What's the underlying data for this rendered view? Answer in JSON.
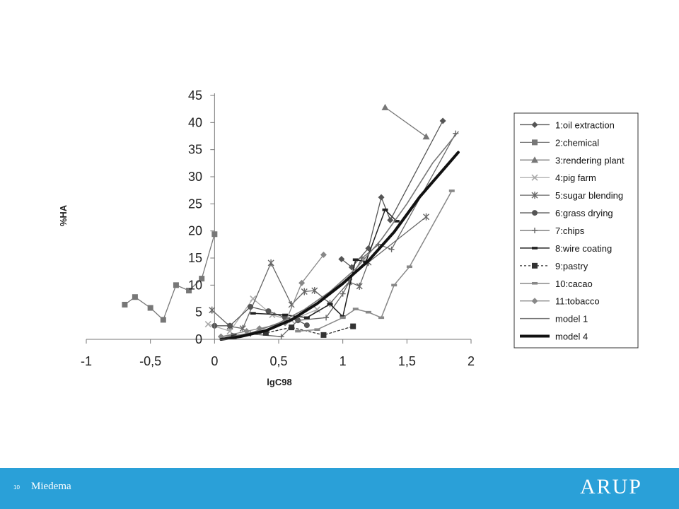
{
  "chart_data": {
    "type": "line",
    "title": "",
    "xlabel": "lgC98",
    "ylabel": "%HA",
    "xlim": [
      -1,
      2
    ],
    "ylim": [
      0,
      45
    ],
    "xticks": [
      {
        "v": -1,
        "label": "-1"
      },
      {
        "v": -0.5,
        "label": "-0,5"
      },
      {
        "v": 0,
        "label": "0"
      },
      {
        "v": 0.5,
        "label": "0,5"
      },
      {
        "v": 1,
        "label": "1"
      },
      {
        "v": 1.5,
        "label": "1,5"
      },
      {
        "v": 2,
        "label": "2"
      }
    ],
    "yticks": [
      {
        "v": 0,
        "label": "0"
      },
      {
        "v": 5,
        "label": "5"
      },
      {
        "v": 10,
        "label": "10"
      },
      {
        "v": 15,
        "label": "15"
      },
      {
        "v": 20,
        "label": "20"
      },
      {
        "v": 25,
        "label": "25"
      },
      {
        "v": 30,
        "label": "30"
      },
      {
        "v": 35,
        "label": "35"
      },
      {
        "v": 40,
        "label": "40"
      },
      {
        "v": 45,
        "label": "45"
      }
    ],
    "grid": false,
    "legend_position": "right",
    "series": [
      {
        "name": "1:oil extraction",
        "color": "#555555",
        "marker": "diamond",
        "dash": "",
        "width": 1.3,
        "points": [
          [
            0.99,
            14.8
          ],
          [
            1.07,
            13.3
          ],
          [
            1.2,
            16.8
          ],
          [
            1.3,
            26.2
          ],
          [
            1.37,
            22.0
          ],
          [
            1.78,
            40.3
          ]
        ]
      },
      {
        "name": "2:chemical",
        "color": "#777777",
        "marker": "square",
        "dash": "",
        "width": 1.3,
        "points": [
          [
            -0.7,
            6.4
          ],
          [
            -0.62,
            7.8
          ],
          [
            -0.5,
            5.8
          ],
          [
            -0.4,
            3.6
          ],
          [
            -0.3,
            10.0
          ],
          [
            -0.2,
            9.0
          ],
          [
            -0.1,
            11.2
          ],
          [
            0.0,
            19.4
          ]
        ]
      },
      {
        "name": "3:rendering plant",
        "color": "#777777",
        "marker": "triangle",
        "dash": "",
        "width": 1.3,
        "points": [
          [
            1.33,
            42.8
          ],
          [
            1.65,
            37.4
          ]
        ]
      },
      {
        "name": "4:pig farm",
        "color": "#aaaaaa",
        "marker": "x",
        "dash": "",
        "width": 1.3,
        "points": [
          [
            -0.05,
            2.8
          ],
          [
            0.12,
            1.5
          ],
          [
            0.3,
            7.5
          ],
          [
            0.45,
            4.5
          ],
          [
            0.6,
            3.5
          ],
          [
            0.8,
            5.5
          ]
        ]
      },
      {
        "name": "5:sugar blending",
        "color": "#666666",
        "marker": "asterisk",
        "dash": "",
        "width": 1.3,
        "points": [
          [
            -0.02,
            5.4
          ],
          [
            0.12,
            2.4
          ],
          [
            0.22,
            2.0
          ],
          [
            0.44,
            14.1
          ],
          [
            0.6,
            6.4
          ],
          [
            0.7,
            8.8
          ],
          [
            0.78,
            9.0
          ],
          [
            0.9,
            6.6
          ],
          [
            1.05,
            10.6
          ],
          [
            1.13,
            9.8
          ],
          [
            1.2,
            14.2
          ],
          [
            1.65,
            22.6
          ]
        ]
      },
      {
        "name": "6:grass drying",
        "color": "#555555",
        "marker": "circle",
        "dash": "",
        "width": 1.3,
        "points": [
          [
            0.0,
            2.5
          ],
          [
            0.12,
            2.5
          ],
          [
            0.28,
            6.0
          ],
          [
            0.42,
            5.2
          ],
          [
            0.55,
            4.0
          ],
          [
            0.65,
            3.5
          ],
          [
            0.72,
            2.6
          ]
        ]
      },
      {
        "name": "7:chips",
        "color": "#666666",
        "marker": "plus",
        "dash": "",
        "width": 1.3,
        "points": [
          [
            0.05,
            0.5
          ],
          [
            0.28,
            1.0
          ],
          [
            0.52,
            0.5
          ],
          [
            0.65,
            3.5
          ],
          [
            0.87,
            4.0
          ],
          [
            1.0,
            8.4
          ],
          [
            1.15,
            15.0
          ],
          [
            1.28,
            17.5
          ],
          [
            1.38,
            16.6
          ],
          [
            1.88,
            38.0
          ]
        ]
      },
      {
        "name": "8:wire coating",
        "color": "#222222",
        "marker": "dash",
        "dash": "",
        "width": 1.5,
        "points": [
          [
            0.3,
            4.8
          ],
          [
            0.55,
            4.5
          ],
          [
            0.72,
            4.0
          ],
          [
            0.9,
            6.5
          ],
          [
            1.0,
            4.2
          ],
          [
            1.1,
            14.7
          ],
          [
            1.18,
            14.3
          ],
          [
            1.33,
            23.9
          ],
          [
            1.42,
            21.8
          ]
        ]
      },
      {
        "name": "9:pastry",
        "color": "#333333",
        "marker": "square",
        "dash": "3,3",
        "width": 1.3,
        "points": [
          [
            0.15,
            0.6
          ],
          [
            0.4,
            1.2
          ],
          [
            0.6,
            2.2
          ],
          [
            0.85,
            0.8
          ],
          [
            1.08,
            2.4
          ]
        ]
      },
      {
        "name": "10:cacao",
        "color": "#888888",
        "marker": "dash",
        "dash": "",
        "width": 1.5,
        "points": [
          [
            0.65,
            1.5
          ],
          [
            0.8,
            1.8
          ],
          [
            1.0,
            4.0
          ],
          [
            1.1,
            5.6
          ],
          [
            1.2,
            5.0
          ],
          [
            1.3,
            4.0
          ],
          [
            1.4,
            10.0
          ],
          [
            1.52,
            13.4
          ],
          [
            1.85,
            27.4
          ]
        ]
      },
      {
        "name": "11:tobacco",
        "color": "#888888",
        "marker": "diamond",
        "dash": "",
        "width": 1.3,
        "points": [
          [
            0.05,
            0.5
          ],
          [
            0.25,
            1.5
          ],
          [
            0.35,
            2.0
          ],
          [
            0.55,
            3.0
          ],
          [
            0.68,
            10.4
          ],
          [
            0.85,
            15.6
          ]
        ]
      },
      {
        "name": "model 1",
        "color": "#777777",
        "marker": "none",
        "dash": "",
        "width": 1.6,
        "points": [
          [
            0.1,
            0.3
          ],
          [
            0.3,
            1.3
          ],
          [
            0.5,
            3.0
          ],
          [
            0.7,
            5.5
          ],
          [
            0.9,
            8.8
          ],
          [
            1.1,
            13.0
          ],
          [
            1.3,
            18.4
          ],
          [
            1.5,
            25.0
          ],
          [
            1.7,
            32.5
          ],
          [
            1.9,
            38.3
          ]
        ]
      },
      {
        "name": "model 4",
        "color": "#111111",
        "marker": "none",
        "dash": "",
        "width": 4,
        "points": [
          [
            0.05,
            0.0
          ],
          [
            0.2,
            0.5
          ],
          [
            0.4,
            1.6
          ],
          [
            0.6,
            3.6
          ],
          [
            0.8,
            6.6
          ],
          [
            1.0,
            10.3
          ],
          [
            1.2,
            14.5
          ],
          [
            1.4,
            19.8
          ],
          [
            1.6,
            26.3
          ],
          [
            1.9,
            34.5
          ]
        ]
      }
    ]
  },
  "footer": {
    "page_number": "10",
    "author": "Miedema",
    "logo": "ARUP"
  }
}
